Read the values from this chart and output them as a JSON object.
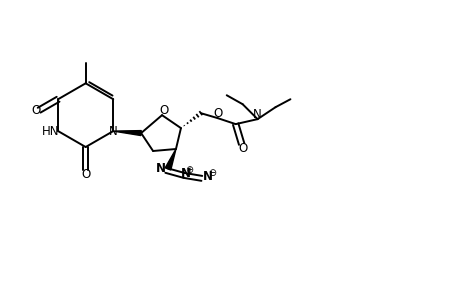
{
  "background": "#ffffff",
  "line_color": "#000000",
  "line_width": 1.4,
  "font_size": 8.5,
  "figsize": [
    4.6,
    3.0
  ],
  "dpi": 100,
  "xlim": [
    0,
    46
  ],
  "ylim": [
    0,
    30
  ]
}
